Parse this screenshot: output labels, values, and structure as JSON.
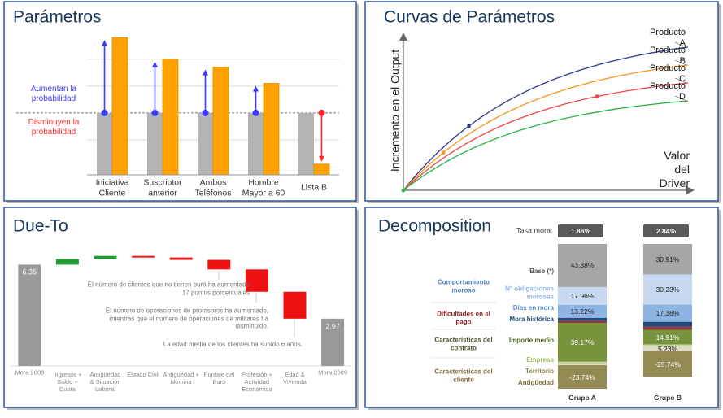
{
  "chart_data": [
    {
      "type": "bar",
      "title": "Parámetros",
      "categories": [
        "Iniciativa\nCliente",
        "Suscriptor\nanterior",
        "Ambos\nTeléfonos",
        "Hombre\nMayor a 60",
        "Lista B"
      ],
      "series": [
        {
          "color": "#b3b3b3",
          "values": [
            3,
            3,
            3,
            3,
            3
          ]
        },
        {
          "color": "#ffa200",
          "values": [
            5.8,
            5.0,
            4.7,
            4.1,
            1.1
          ]
        }
      ],
      "ylim": [
        0.7,
        6.2
      ],
      "grid_lines": [
        2,
        4,
        5
      ],
      "annotations": [
        {
          "text": "Aumentan la\nprobabilidad",
          "color": "#3b3bff"
        },
        {
          "text": "Disminuyen la\nprobabilidad",
          "color": "#ff2b2b"
        }
      ]
    },
    {
      "type": "curves",
      "title": "Curvas de Parámetros",
      "xlabel": "Valor del Driver",
      "ylabel": "Incremento en el Output",
      "series": [
        {
          "name": "Producto A",
          "color": "#2b3990"
        },
        {
          "name": "Producto B",
          "color": "#f7941d"
        },
        {
          "name": "Producto C",
          "color": "#ee4444"
        },
        {
          "name": "Producto D",
          "color": "#2bb04a"
        }
      ]
    },
    {
      "type": "waterfall",
      "title": "Due-To",
      "start": {
        "label": "Mora 2008",
        "value": 6.36
      },
      "end": {
        "label": "Mora 2009",
        "value": 2.97
      },
      "categories": [
        "Ingresos +\nSaldo +\nCuota",
        "Antigüedad\n& Situación\nLaboral",
        "Estado Civil",
        "Antigüedad +\nNómina",
        "Puntaje del\nBuró",
        "Profesión +\nActividad\nEconómica",
        "Edad &\nVivienda"
      ],
      "values": [
        0.35,
        0.2,
        -0.1,
        -0.15,
        -0.6,
        -1.4,
        -1.69
      ],
      "ylim": [
        0,
        7.2
      ],
      "colors": {
        "total": "#999999",
        "increase": "#1f9e35",
        "decrease": "#ee1111"
      },
      "annotations": [
        "El número de clientes que no tienen buró ha aumentado\n17 puntos porcentuales",
        "El número de operaciones de profesores ha aumentado,\nmientras que el número de operaciones de militares ha\ndisminuido.",
        "La edad media de los clientes ha subido 6 años."
      ]
    },
    {
      "type": "stacked-bar",
      "title": "Decomposition",
      "header_label": "Tasa mora:",
      "header_values": [
        1.86,
        2.84
      ],
      "header_value_labels": [
        "1.86%",
        "2.84%"
      ],
      "categories": [
        "Grupo A",
        "Grupo B"
      ],
      "series": [
        {
          "name": "Base (*)",
          "color": "#a6a6a6",
          "name_color": "#595959",
          "values": [
            43.38,
            30.91
          ],
          "value_labels": [
            "43.38%",
            "30.91%"
          ]
        },
        {
          "name": "Nº obligaciones\nmorosas",
          "color": "#c6d9f1",
          "name_color": "#8eb4e3",
          "values": [
            17.96,
            30.23
          ],
          "value_labels": [
            "17.96%",
            "30.23%"
          ]
        },
        {
          "name": "Días en mora",
          "color": "#8db4e2",
          "name_color": "#558ed5",
          "values": [
            13.22,
            17.36
          ],
          "value_labels": [
            "13.22%",
            "17.36%"
          ]
        },
        {
          "name": "Mora histórica",
          "color": "#1f497d",
          "name_color": "#1f497d",
          "values": [
            3,
            5
          ],
          "value_labels": [
            null,
            null
          ]
        },
        {
          "name": null,
          "color": "#953735",
          "values": [
            2,
            3
          ],
          "value_labels": [
            null,
            null
          ]
        },
        {
          "name": "Importe medio",
          "color": "#77933c",
          "name_color": "#4f6228",
          "values": [
            39.17,
            14.91
          ],
          "value_labels": [
            "39.17%",
            "14.91%"
          ]
        },
        {
          "name": "Empresa",
          "color": "#c3d69b",
          "name_color": "#9bbb59",
          "values": [
            2,
            1.5
          ],
          "value_labels": [
            null,
            null
          ]
        },
        {
          "name": "Territorio",
          "color": "#ddd9c3",
          "name_color": "#948a54",
          "values": [
            1.5,
            5.23
          ],
          "value_labels": [
            null,
            "5.23%"
          ]
        },
        {
          "name": "Antigüedad",
          "color": "#948a54",
          "name_color": "#7f6a3a",
          "values": [
            -23.74,
            -25.74
          ],
          "value_labels": [
            "-23.74%",
            "-25.74%"
          ]
        }
      ],
      "groups": [
        {
          "name": "Comportamiento\nmoroso",
          "color": "#4a7ebb"
        },
        {
          "name": "Dificultades en el\npago",
          "color": "#8b2222"
        },
        {
          "name": "Características del\ncontrato",
          "color": "#4f4f2f"
        },
        {
          "name": "Características del\ncliente",
          "color": "#7f6a3a"
        }
      ]
    }
  ]
}
